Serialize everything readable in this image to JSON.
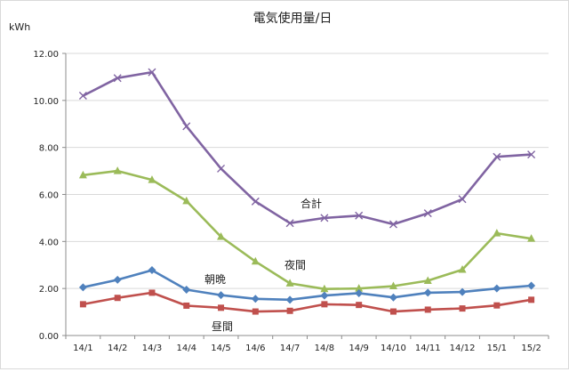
{
  "chart_data": {
    "type": "line",
    "title": "電気使用量/日",
    "ylabel_unit": "kWh",
    "categories": [
      "14/1",
      "14/2",
      "14/3",
      "14/4",
      "14/5",
      "14/6",
      "14/7",
      "14/8",
      "14/9",
      "14/10",
      "14/11",
      "14/12",
      "15/1",
      "15/2"
    ],
    "ylim": [
      0,
      12
    ],
    "yticks": [
      "0.00",
      "2.00",
      "4.00",
      "6.00",
      "8.00",
      "10.00",
      "12.00"
    ],
    "grid": "horizontal",
    "legend": "none (inline labels)",
    "series": [
      {
        "name": "合計",
        "color": "#8064A2",
        "marker": "x",
        "values": [
          10.2,
          10.95,
          11.2,
          8.9,
          7.1,
          5.7,
          4.78,
          5.0,
          5.1,
          4.73,
          5.2,
          5.8,
          7.6,
          7.7
        ]
      },
      {
        "name": "夜間",
        "color": "#9BBB59",
        "marker": "triangle",
        "values": [
          6.82,
          7.0,
          6.62,
          5.72,
          4.2,
          3.15,
          2.22,
          1.98,
          2.0,
          2.1,
          2.33,
          2.8,
          4.35,
          4.12
        ]
      },
      {
        "name": "朝晩",
        "color": "#4F81BD",
        "marker": "diamond",
        "values": [
          2.05,
          2.37,
          2.78,
          1.95,
          1.72,
          1.56,
          1.52,
          1.7,
          1.8,
          1.62,
          1.82,
          1.85,
          2.0,
          2.12
        ]
      },
      {
        "name": "昼間",
        "color": "#C0504D",
        "marker": "square",
        "values": [
          1.33,
          1.6,
          1.82,
          1.27,
          1.18,
          1.02,
          1.05,
          1.33,
          1.3,
          1.02,
          1.1,
          1.15,
          1.28,
          1.52
        ]
      }
    ]
  }
}
